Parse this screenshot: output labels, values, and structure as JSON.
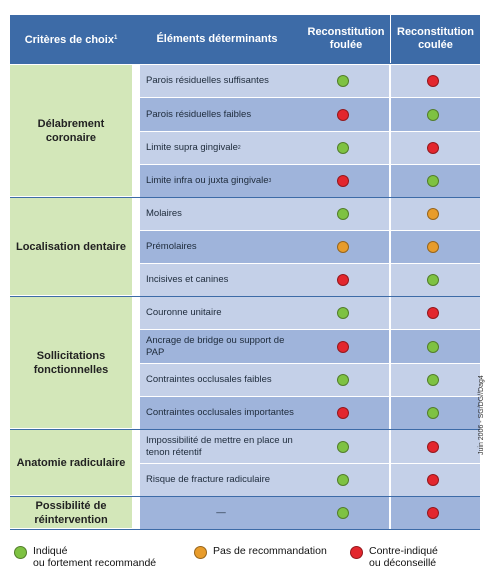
{
  "colors": {
    "recommended": "#7ec242",
    "no_recommendation": "#e89c2b",
    "contraindicated": "#e3262d",
    "header_bg": "#3d6ba7",
    "category_bg": "#d3e7b9"
  },
  "table": {
    "headers": {
      "criteria": "Critères de choix",
      "criteria_note": "1",
      "elements": "Éléments déterminants",
      "foulee": "Reconstitution foulée",
      "coulee": "Reconstitution coulée"
    },
    "groups": [
      {
        "name": "Délabrement coronaire",
        "rows": [
          {
            "label": "Parois résiduelles suffisantes",
            "note": "",
            "foulee": "recommended",
            "coulee": "contraindicated"
          },
          {
            "label": "Parois résiduelles faibles",
            "note": "",
            "foulee": "contraindicated",
            "coulee": "recommended"
          },
          {
            "label": "Limite supra gingivale",
            "note": "2",
            "foulee": "recommended",
            "coulee": "contraindicated"
          },
          {
            "label": "Limite infra ou juxta gingivale",
            "note": "3",
            "foulee": "contraindicated",
            "coulee": "recommended"
          }
        ]
      },
      {
        "name": "Localisation dentaire",
        "rows": [
          {
            "label": "Molaires",
            "note": "",
            "foulee": "recommended",
            "coulee": "no_recommendation"
          },
          {
            "label": "Prémolaires",
            "note": "",
            "foulee": "no_recommendation",
            "coulee": "no_recommendation"
          },
          {
            "label": "Incisives et canines",
            "note": "",
            "foulee": "contraindicated",
            "coulee": "recommended"
          }
        ]
      },
      {
        "name": "Sollicitations fonctionnelles",
        "rows": [
          {
            "label": "Couronne unitaire",
            "note": "",
            "foulee": "recommended",
            "coulee": "contraindicated"
          },
          {
            "label": "Ancrage de bridge ou support de PAP",
            "note": "",
            "foulee": "contraindicated",
            "coulee": "recommended"
          },
          {
            "label": "Contraintes occlusales faibles",
            "note": "",
            "foulee": "recommended",
            "coulee": "recommended"
          },
          {
            "label": "Contraintes occlusales importantes",
            "note": "",
            "foulee": "contraindicated",
            "coulee": "recommended"
          }
        ]
      },
      {
        "name": "Anatomie radiculaire",
        "rows": [
          {
            "label": "Impossibilité de mettre en place un tenon rétentif",
            "note": "",
            "foulee": "recommended",
            "coulee": "contraindicated"
          },
          {
            "label": "Risque de fracture radiculaire",
            "note": "",
            "foulee": "recommended",
            "coulee": "contraindicated"
          }
        ]
      },
      {
        "name": "Possibilité de réintervention",
        "rows": [
          {
            "label": "—",
            "note": "",
            "foulee": "recommended",
            "coulee": "contraindicated"
          }
        ]
      }
    ]
  },
  "credit": "Juin 2006 - SG/DG//Dag4",
  "legend": [
    {
      "key": "recommended",
      "label": "Indiqué\nou fortement recommandé"
    },
    {
      "key": "no_recommendation",
      "label": "Pas de recommandation"
    },
    {
      "key": "contraindicated",
      "label": "Contre-indiqué\nou déconseillé"
    }
  ]
}
